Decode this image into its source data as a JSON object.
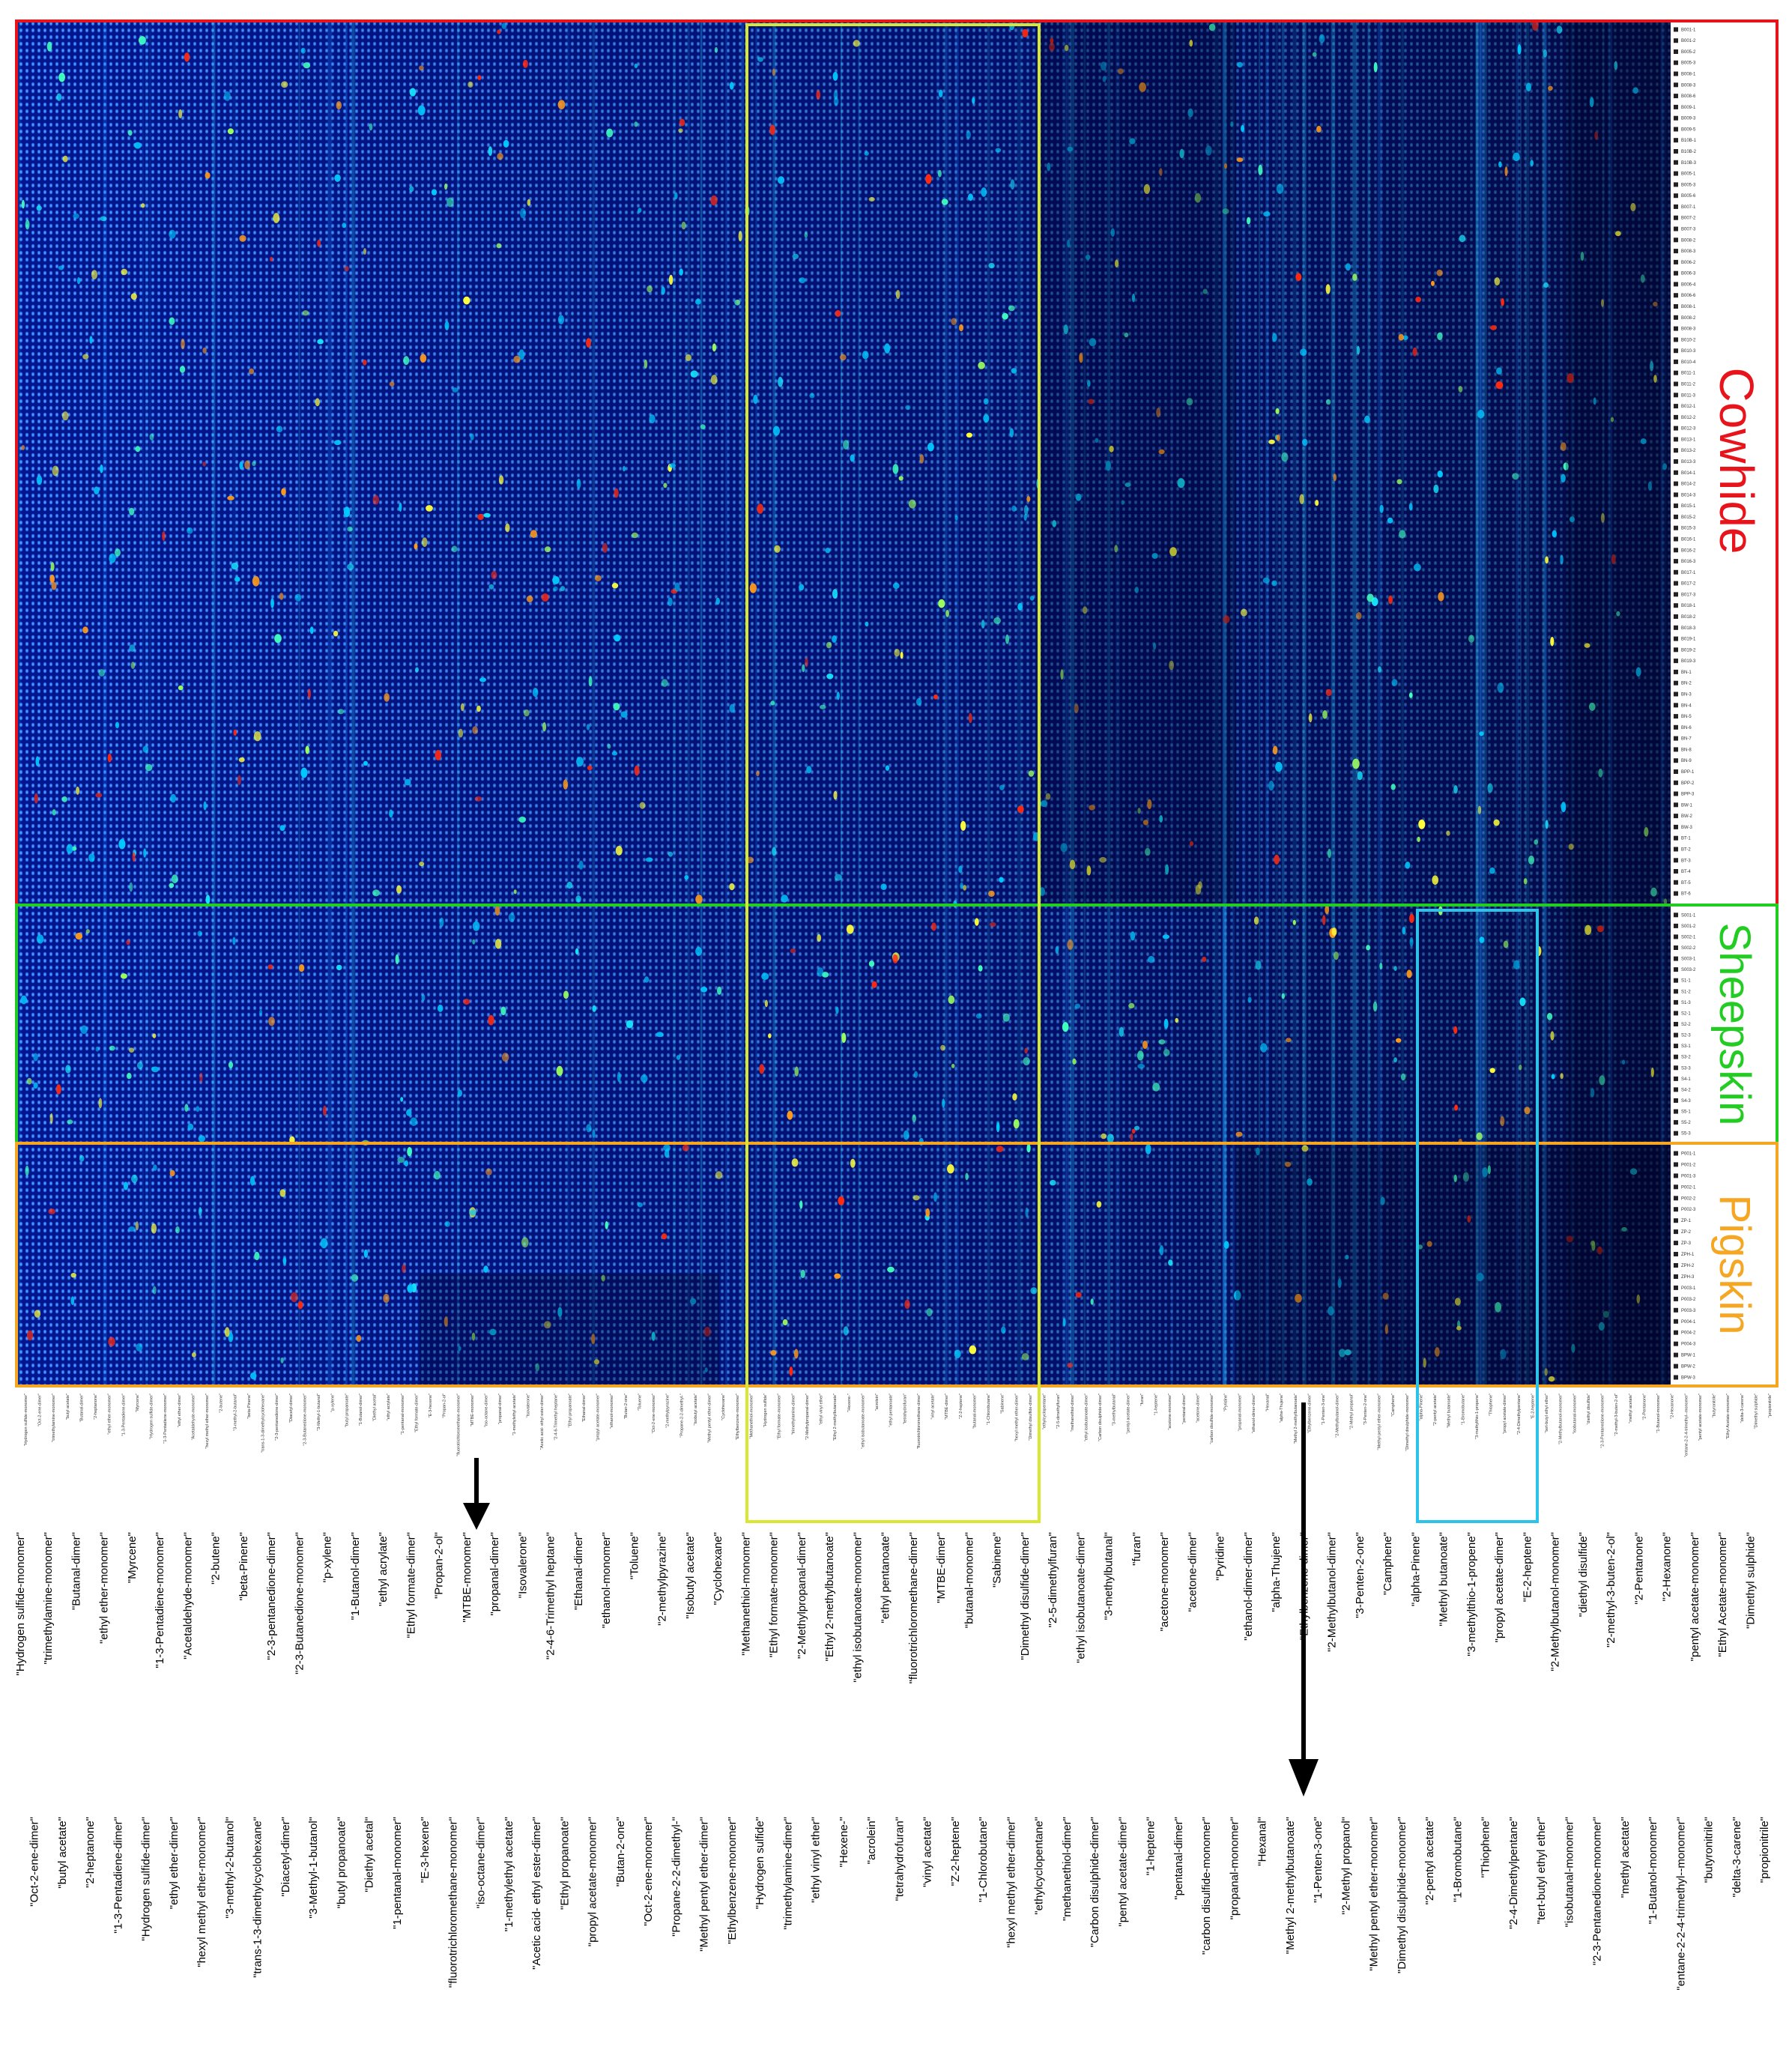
{
  "chart_data": {
    "type": "heatmap",
    "colormap": "jet",
    "orientation": "rotated 90 degrees clockwise; compound columns run left to right",
    "groups": [
      {
        "name": "Cowhide",
        "color": "#e8141c",
        "samples": [
          "B001-1",
          "B001-2",
          "B005-2",
          "B005-3",
          "B008-1",
          "B008-3",
          "B008-6",
          "B009-1",
          "B009-3",
          "B009-5",
          "B10B-1",
          "B10B-2",
          "B10B-3",
          "B005-1",
          "B005-3",
          "B005-6",
          "B007-1",
          "B007-2",
          "B007-3",
          "B008-2",
          "B008-3",
          "B006-2",
          "B006-3",
          "B006-4",
          "B006-6",
          "B008-1",
          "B008-2",
          "B008-3",
          "B010-2",
          "B010-3",
          "B010-4",
          "B011-1",
          "B011-2",
          "B011-3",
          "B012-1",
          "B012-2",
          "B012-3",
          "B013-1",
          "B013-2",
          "B013-3",
          "B014-1",
          "B014-2",
          "B014-3",
          "B015-1",
          "B015-2",
          "B015-3",
          "B016-1",
          "B016-2",
          "B016-3",
          "B017-1",
          "B017-2",
          "B017-3",
          "B018-1",
          "B018-2",
          "B018-3",
          "B019-1",
          "B019-2",
          "B019-3",
          "BN-1",
          "BN-2",
          "BN-3",
          "BN-4",
          "BN-5",
          "BN-6",
          "BN-7",
          "BN-8",
          "BN-9",
          "BPP-1",
          "BPP-2",
          "BPP-3",
          "BW-1",
          "BW-2",
          "BW-3",
          "BT-1",
          "BT-2",
          "BT-3",
          "BT-4",
          "BT-5",
          "BT-6"
        ]
      },
      {
        "name": "Sheepskin",
        "color": "#22cc22",
        "samples": [
          "S001-1",
          "S001-2",
          "S002-1",
          "S002-2",
          "S003-1",
          "S003-2",
          "S1-1",
          "S1-2",
          "S1-3",
          "S2-1",
          "S2-2",
          "S2-3",
          "S3-1",
          "S3-2",
          "S3-3",
          "S4-1",
          "S4-2",
          "S4-3",
          "S5-1",
          "S5-2",
          "S5-3"
        ]
      },
      {
        "name": "Pigskin",
        "color": "#f5a623",
        "samples": [
          "P001-1",
          "P001-2",
          "P001-3",
          "P002-1",
          "P002-2",
          "P002-3",
          "ZP-1",
          "ZP-2",
          "ZP-3",
          "ZPH-1",
          "ZPH-2",
          "ZPH-3",
          "P003-1",
          "P003-2",
          "P003-3",
          "P004-1",
          "P004-2",
          "P004-3",
          "BPW-1",
          "BPW-2",
          "BPW-3"
        ]
      }
    ],
    "highlight_boxes": [
      {
        "color": "#d8e832",
        "label": "yellow box"
      },
      {
        "color": "#2bc4e8",
        "label": "cyan box"
      }
    ],
    "compound_labels": [
      "\"Hydrogen sulfide-monomer\"",
      "\"Oct-2-ene-dimer\"",
      "\"trimethylamine-monomer\"",
      "\"butyl acetate\"",
      "\"Butanal-dimer\"",
      "\"2-heptanone\"",
      "\"ethyl ether-monomer\"",
      "\"1-3-Pentadiene-dimer\"",
      "\"Myrcene\"",
      "\"Hydrogen sulfide-dimer\"",
      "\"1-3-Pentadiene-monomer\"",
      "\"ethyl ether-dimer\"",
      "\"Acetaldehyde-monomer\"",
      "\"hexyl methyl ether-monomer\"",
      "\"2-butene\"",
      "\"3-methyl-2-butanol\"",
      "\"beta-Pinene\"",
      "\"trans-1-3-dimethylcyclohexane\"",
      "\"2-3-pentanedione-dimer\"",
      "\"Diacetyl-dimer\"",
      "\"2-3-Butanedione-monomer\"",
      "\"3-Methyl-1-butanol\"",
      "\"p-xylene\"",
      "\"butyl propanoate\"",
      "\"1-Butanol-dimer\"",
      "\"Diethyl acetal\"",
      "\"ethyl acrylate\"",
      "\"1-pentanal-monomer\"",
      "\"Ethyl formate-dimer\"",
      "\"E-3-hexene\"",
      "\"Propan-2-ol\"",
      "\"fluorotrichloromethane-monomer\"",
      "\"MTBE-monomer\"",
      "\"iso-octane-dimer\"",
      "\"propanal-dimer\"",
      "\"1-methylethyl acetate\"",
      "\"Isovalerone\"",
      "\"Acetic acid- ethyl ester-dimer\"",
      "\"2-4-6-Trimethyl heptane\"",
      "\"Ethyl propanoate\"",
      "\"Ethanal-dimer\"",
      "\"propyl acetate-monomer\"",
      "\"ethanol-monomer\"",
      "\"Butan-2-one\"",
      "\"Toluene\"",
      "\"Oct-2-ene-monomer\"",
      "\"2-methylpyrazine\"",
      "\"Propane-2-2-dimethyl-\"",
      "\"Isobutyl acetate\"",
      "\"Methyl pentyl ether-dimer\"",
      "\"Cyclohexane\"",
      "\"Ethylbenzene-monomer\"",
      "\"Methanethiol-monomer\"",
      "\"Hydrogen sulfide\"",
      "\"Ethyl formate-monomer\"",
      "\"trimethylamine-dimer\"",
      "\"2-Methylpropanal-dimer\"",
      "\"ethyl vinyl ether\"",
      "\"Ethyl 2-methylbutanoate\"",
      "\"Hexene-\"",
      "\"ethyl isobutanoate-monomer\"",
      "\"acrolein\"",
      "\"ethyl pentanoate\"",
      "\"tetrahydrofuran\"",
      "\"fluorotrichloromethane-dimer\"",
      "\"vinyl acetate\"",
      "\"MTBE-dimer\"",
      "\"Z-2-heptene\"",
      "\"butanal-monomer\"",
      "\"1-Chlorobutane\"",
      "\"Sabinene\"",
      "\"hexyl methyl ether-dimer\"",
      "\"Dimethyl disulfide-dimer\"",
      "\"ethylcyclopentane\"",
      "\"2-5-dimethylfuran\"",
      "\"methanethiol-dimer\"",
      "\"ethyl isobutanoate-dimer\"",
      "\"Carbon disulphide-dimer\"",
      "\"3-methylbutanal\"",
      "\"pentyl acetate-dimer\"",
      "\"furan\"",
      "\"1-heptene\"",
      "\"acetone-monomer\"",
      "\"pentanal-dimer\"",
      "\"acetone-dimer\"",
      "\"carbon disulfide-monomer\"",
      "\"Pyridine\"",
      "\"propanal-monomer\"",
      "\"ethanol-dimer-dimer\"",
      "\"Hexanal\"",
      "\"alpha-Thujene\"",
      "\"Methyl 2-methylbutanoate\"",
      "\"Ethylbenzene-dimer\"",
      "\"1-Penten-3-one\"",
      "\"2-Methylbutanol-dimer\"",
      "\"2-Methyl propanol\"",
      "\"3-Penten-2-one\"",
      "\"Methyl pentyl ether-monomer\"",
      "\"Camphene\"",
      "\"Dimethyl disulphide-monomer\"",
      "\"alpha-Pinene\"",
      "\"2-pentyl acetate\"",
      "\"Methyl butanoate\"",
      "\"1-Bromobutane\"",
      "\"3-methylthio-1-propene\"",
      "\"Thiophene\"",
      "\"propyl acetate-dimer\"",
      "\"2-4-Dimethylpentane\"",
      "\"E-2-heptene\"",
      "\"tert-butyl ethyl ether\"",
      "\"2-Methylbutanol-monomer\"",
      "\"isobutanal-monomer\"",
      "\"diethyl disulfide\"",
      "\"2-3-Pentanedione-monomer\"",
      "\"2-methyl-3-buten-2-ol\"",
      "\"methyl acetate\"",
      "\"2-Pentanone\"",
      "\"1-Butanol-monomer\"",
      "\"2-Hexanone\"",
      "\"entane-2-2-4-trimethyl--monomer\"",
      "\"pentyl acetate-monomer\"",
      "\"butyronitrile\"",
      "\"Ethyl Acetate-monomer\"",
      "\"delta-3-carene\"",
      "\"Dimethyl sulphide\"",
      "\"propionitrile\""
    ],
    "xlabel": "",
    "ylabel": "",
    "grid": false,
    "legend": "group labels at right"
  }
}
